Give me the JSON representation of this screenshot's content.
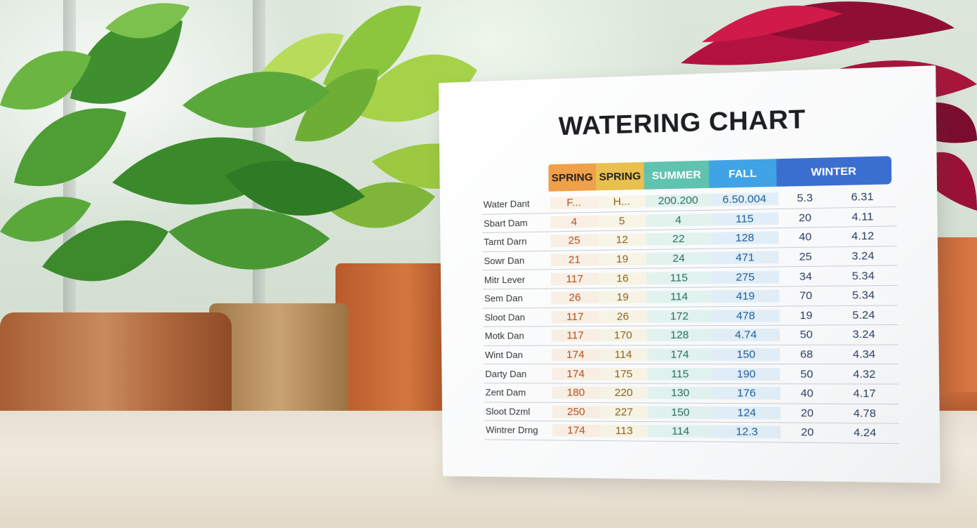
{
  "card": {
    "title": "WATERING CHART",
    "headers": [
      "SPRING",
      "SPRING",
      "SUMMER",
      "FALL",
      "WINTER"
    ],
    "rows": [
      {
        "label": "Water Dant",
        "sp1": "F...",
        "sp2": "H...",
        "sum": "200.200",
        "fall": "6.50.004",
        "w1": "5.3",
        "w2": "6.31"
      },
      {
        "label": "Sbart Dam",
        "sp1": "4",
        "sp2": "5",
        "sum": "4",
        "fall": "115",
        "w1": "20",
        "w2": "4.11"
      },
      {
        "label": "Tarnt Darn",
        "sp1": "25",
        "sp2": "12",
        "sum": "22",
        "fall": "128",
        "w1": "40",
        "w2": "4.12"
      },
      {
        "label": "Sowr Dan",
        "sp1": "21",
        "sp2": "19",
        "sum": "24",
        "fall": "471",
        "w1": "25",
        "w2": "3.24"
      },
      {
        "label": "Mitr Lever",
        "sp1": "117",
        "sp2": "16",
        "sum": "115",
        "fall": "275",
        "w1": "34",
        "w2": "5.34"
      },
      {
        "label": "Sem Dan",
        "sp1": "26",
        "sp2": "19",
        "sum": "114",
        "fall": "419",
        "w1": "70",
        "w2": "5.34"
      },
      {
        "label": "Sloot Dan",
        "sp1": "117",
        "sp2": "26",
        "sum": "172",
        "fall": "478",
        "w1": "19",
        "w2": "5.24"
      },
      {
        "label": "Motk Dan",
        "sp1": "117",
        "sp2": "170",
        "sum": "128",
        "fall": "4.74",
        "w1": "50",
        "w2": "3.24"
      },
      {
        "label": "Wint Dan",
        "sp1": "174",
        "sp2": "114",
        "sum": "174",
        "fall": "150",
        "w1": "68",
        "w2": "4.34"
      },
      {
        "label": "Darty Dan",
        "sp1": "174",
        "sp2": "175",
        "sum": "115",
        "fall": "190",
        "w1": "50",
        "w2": "4.32"
      },
      {
        "label": "Zent Dam",
        "sp1": "180",
        "sp2": "220",
        "sum": "130",
        "fall": "176",
        "w1": "40",
        "w2": "4.17"
      },
      {
        "label": "Sloot Dzml",
        "sp1": "250",
        "sp2": "227",
        "sum": "150",
        "fall": "124",
        "w1": "20",
        "w2": "4.78"
      },
      {
        "label": "Wintrer Drng",
        "sp1": "174",
        "sp2": "113",
        "sum": "114",
        "fall": "12.3",
        "w1": "20",
        "w2": "4.24"
      }
    ]
  },
  "colors": {
    "spring1": "#f0a04a",
    "spring2": "#e9c04f",
    "summer": "#5fc3b0",
    "fall": "#3fa3e6",
    "winter": "#3b6fcf"
  }
}
